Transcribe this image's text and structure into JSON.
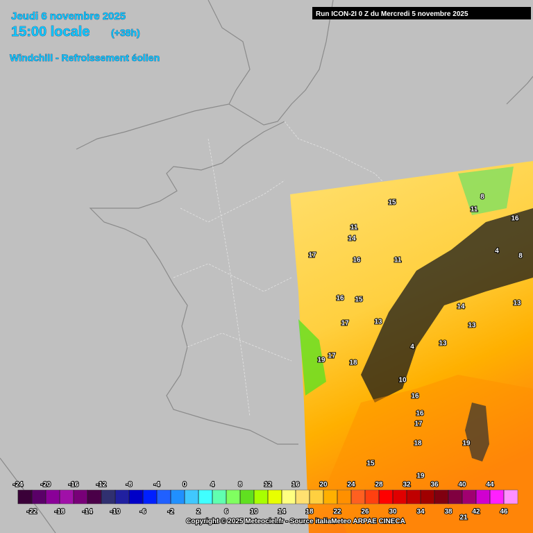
{
  "header": {
    "date": "Jeudi 6 novembre 2025",
    "time": "15:00 locale",
    "lead": "(+38h)",
    "parameter": "Windchill - Refroissement éolien",
    "run": "Run ICON-2I 0 Z du Mercredi 5 novembre 2025"
  },
  "colorbar": {
    "ticks": [
      -24,
      -22,
      -20,
      -18,
      -16,
      -14,
      -12,
      -10,
      -8,
      -6,
      -4,
      -2,
      0,
      2,
      4,
      6,
      8,
      10,
      12,
      14,
      16,
      18,
      20,
      22,
      24,
      26,
      28,
      30,
      32,
      34,
      36,
      38,
      40,
      42,
      44,
      46
    ],
    "colors": [
      "#3a0038",
      "#5a0068",
      "#8a0098",
      "#a010a8",
      "#780078",
      "#4a0048",
      "#303070",
      "#2020a0",
      "#0000c8",
      "#0020ff",
      "#2060ff",
      "#2090ff",
      "#40c8ff",
      "#40ffff",
      "#60ffb0",
      "#80ff60",
      "#60e020",
      "#a8ff00",
      "#e8ff00",
      "#ffff80",
      "#ffe070",
      "#ffd040",
      "#ffb000",
      "#ff9000",
      "#ff6020",
      "#ff4010",
      "#ff0000",
      "#e00000",
      "#c00000",
      "#a00000",
      "#800010",
      "#800040",
      "#a00070",
      "#d000d0",
      "#ff20ff",
      "#ff90ff"
    ]
  },
  "contour_labels": [
    15,
    11,
    14,
    17,
    16,
    11,
    16,
    15,
    17,
    13,
    19,
    17,
    18,
    4,
    14,
    13,
    13,
    13,
    10,
    16,
    16,
    17,
    18,
    19,
    15,
    19,
    21,
    8,
    4,
    8,
    11,
    16
  ],
  "footer": "Copyright © 2025 Meteociel.fr - Source italiaMeteo ARPAE CINECA"
}
